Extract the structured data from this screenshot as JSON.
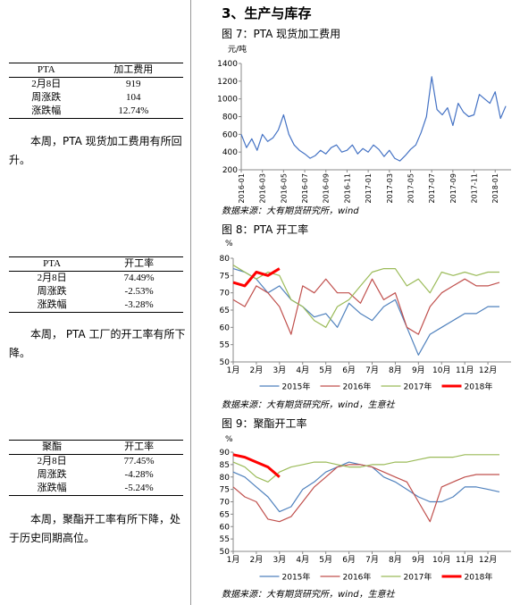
{
  "section_title": "3、生产与库存",
  "tables": [
    {
      "header": [
        "PTA",
        "加工费用"
      ],
      "rows": [
        [
          "2月8日",
          "919"
        ],
        [
          "周涨跌",
          "104"
        ],
        [
          "涨跌幅",
          "12.74%"
        ]
      ],
      "text": "本周，PTA 现货加工费用有所回升。"
    },
    {
      "header": [
        "PTA",
        "开工率"
      ],
      "rows": [
        [
          "2月8日",
          "74.49%"
        ],
        [
          "周涨跌",
          "-2.53%"
        ],
        [
          "涨跌幅",
          "-3.28%"
        ]
      ],
      "text": "本周， PTA 工厂的开工率有所下降。"
    },
    {
      "header": [
        "聚酯",
        "开工率"
      ],
      "rows": [
        [
          "2月8日",
          "77.45%"
        ],
        [
          "周涨跌",
          "-4.28%"
        ],
        [
          "涨跌幅",
          "-5.24%"
        ]
      ],
      "text": "本周，聚酯开工率有所下降，处于历史同期高位。"
    }
  ],
  "chart_data": [
    {
      "type": "line",
      "title": "图 7：PTA 现货加工费用",
      "y_label": "元/吨",
      "source": "数据来源：大有期货研究所，wind",
      "x": [
        "2016-01",
        null,
        null,
        null,
        "2016-03",
        null,
        null,
        null,
        "2016-05",
        null,
        null,
        null,
        "2016-07",
        null,
        null,
        null,
        "2016-09",
        null,
        null,
        null,
        "2016-11",
        null,
        null,
        null,
        "2017-01",
        null,
        null,
        null,
        "2017-03",
        null,
        null,
        null,
        "2017-05",
        null,
        null,
        null,
        "2017-07",
        null,
        null,
        null,
        "2017-09",
        null,
        null,
        null,
        "2017-11",
        null,
        null,
        null,
        "2018-01",
        null,
        null
      ],
      "values": [
        600,
        450,
        550,
        420,
        600,
        520,
        560,
        650,
        820,
        600,
        480,
        420,
        380,
        330,
        360,
        420,
        380,
        450,
        480,
        400,
        420,
        480,
        380,
        440,
        400,
        480,
        430,
        350,
        420,
        330,
        300,
        360,
        430,
        480,
        620,
        800,
        1250,
        880,
        820,
        900,
        700,
        950,
        850,
        800,
        820,
        1050,
        1000,
        950,
        1080,
        780,
        919
      ],
      "color": "#4472c4",
      "ylim": [
        200,
        1400
      ],
      "yticks": [
        200,
        400,
        600,
        800,
        1000,
        1200,
        1400
      ],
      "grid": false
    },
    {
      "type": "line",
      "title": "图 8：PTA 开工率",
      "y_label": "%",
      "source": "数据来源：大有期货研究所，wind，生意社",
      "x": [
        "1月",
        null,
        "2月",
        null,
        "3月",
        null,
        "4月",
        null,
        "5月",
        null,
        "6月",
        null,
        "7月",
        null,
        "8月",
        null,
        "9月",
        null,
        "10月",
        null,
        "11月",
        null,
        "12月",
        null
      ],
      "series": [
        {
          "name": "2015年",
          "color": "#4f81bd",
          "width": 1.2,
          "values": [
            77,
            76,
            74,
            70,
            72,
            68,
            66,
            63,
            64,
            60,
            67,
            64,
            62,
            66,
            68,
            60,
            52,
            58,
            60,
            62,
            64,
            64,
            66,
            66
          ]
        },
        {
          "name": "2016年",
          "color": "#c0504d",
          "width": 1.2,
          "values": [
            68,
            66,
            72,
            70,
            66,
            58,
            72,
            70,
            74,
            70,
            70,
            67,
            74,
            68,
            70,
            60,
            58,
            66,
            70,
            72,
            74,
            72,
            72,
            73
          ]
        },
        {
          "name": "2017年",
          "color": "#9bbb59",
          "width": 1.2,
          "values": [
            78,
            76,
            74,
            76,
            75,
            68,
            66,
            62,
            60,
            66,
            68,
            72,
            76,
            77,
            77,
            72,
            74,
            70,
            76,
            75,
            76,
            75,
            76,
            76
          ]
        },
        {
          "name": "2018年",
          "color": "#ff0000",
          "width": 3,
          "values": [
            73,
            72,
            76,
            75,
            77,
            null,
            null,
            null,
            null,
            null,
            null,
            null,
            null,
            null,
            null,
            null,
            null,
            null,
            null,
            null,
            null,
            null,
            null,
            null
          ]
        }
      ],
      "ylim": [
        50,
        80
      ],
      "yticks": [
        50,
        55,
        60,
        65,
        70,
        75,
        80
      ],
      "grid": false,
      "legend": "bottom"
    },
    {
      "type": "line",
      "title": "图 9：聚酯开工率",
      "y_label": "%",
      "source": "数据来源：大有期货研究所，wind，生意社",
      "x": [
        "1月",
        null,
        "2月",
        null,
        "3月",
        null,
        "4月",
        null,
        "5月",
        null,
        "6月",
        null,
        "7月",
        null,
        "8月",
        null,
        "9月",
        null,
        "10月",
        null,
        "11月",
        null,
        "12月",
        null
      ],
      "series": [
        {
          "name": "2015年",
          "color": "#4f81bd",
          "width": 1.2,
          "values": [
            82,
            80,
            76,
            72,
            66,
            68,
            75,
            78,
            82,
            84,
            86,
            85,
            84,
            80,
            78,
            75,
            72,
            70,
            70,
            72,
            76,
            76,
            75,
            74
          ]
        },
        {
          "name": "2016年",
          "color": "#c0504d",
          "width": 1.2,
          "values": [
            76,
            72,
            70,
            63,
            62,
            64,
            70,
            76,
            80,
            84,
            85,
            85,
            84,
            82,
            80,
            78,
            70,
            62,
            76,
            78,
            80,
            81,
            81,
            81
          ]
        },
        {
          "name": "2017年",
          "color": "#9bbb59",
          "width": 1.2,
          "values": [
            86,
            84,
            80,
            78,
            82,
            84,
            85,
            86,
            86,
            85,
            84,
            84,
            85,
            85,
            86,
            86,
            87,
            88,
            88,
            88,
            89,
            89,
            89,
            89
          ]
        },
        {
          "name": "2018年",
          "color": "#ff0000",
          "width": 3,
          "values": [
            89,
            88,
            86,
            84,
            80,
            null,
            null,
            null,
            null,
            null,
            null,
            null,
            null,
            null,
            null,
            null,
            null,
            null,
            null,
            null,
            null,
            null,
            null,
            null
          ]
        }
      ],
      "ylim": [
        50,
        90
      ],
      "yticks": [
        50,
        55,
        60,
        65,
        70,
        75,
        80,
        85,
        90
      ],
      "grid": false,
      "legend": "bottom"
    }
  ]
}
